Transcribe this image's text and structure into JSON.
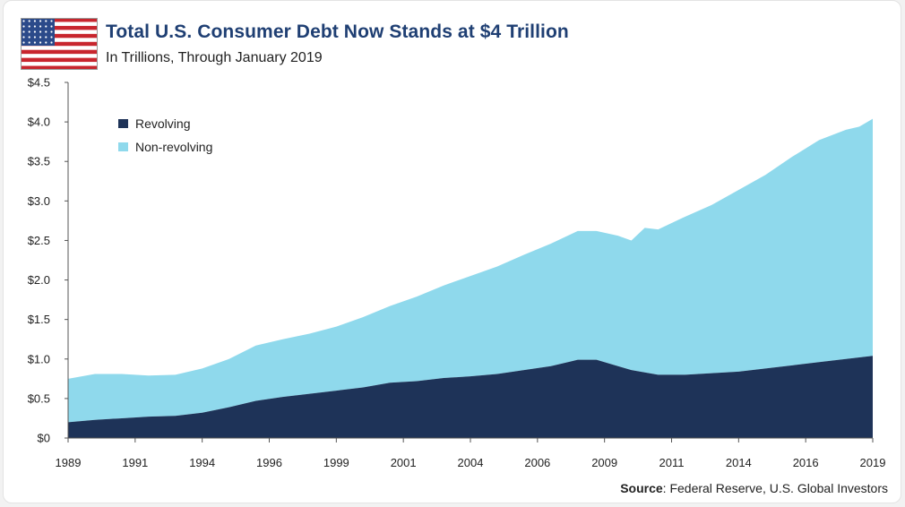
{
  "header": {
    "title": "Total U.S. Consumer Debt Now Stands at $4 Trillion",
    "subtitle": "In Trillions, Through January 2019",
    "flag_icon": "us-flag-icon"
  },
  "source": {
    "label": "Source",
    "text": ": Federal Reserve, U.S. Global Investors"
  },
  "chart_data": {
    "type": "area",
    "stacked": true,
    "title": "Total U.S. Consumer Debt Now Stands at $4 Trillion",
    "subtitle": "In Trillions, Through January 2019",
    "x_range": [
      1989.0,
      2019.0
    ],
    "ylim": [
      0,
      4.5
    ],
    "y_ticks": [
      0,
      0.5,
      1.0,
      1.5,
      2.0,
      2.5,
      3.0,
      3.5,
      4.0,
      4.5
    ],
    "y_tick_labels": [
      "$0",
      "$0.5",
      "$1.0",
      "$1.5",
      "$2.0",
      "$2.5",
      "$3.0",
      "$3.5",
      "$4.0",
      "$4.5"
    ],
    "x_tick_labels": [
      "1989",
      "1991",
      "1994",
      "1996",
      "1999",
      "2001",
      "2004",
      "2006",
      "2009",
      "2011",
      "2014",
      "2016",
      "2019"
    ],
    "legend_position": "top-left",
    "grid": false,
    "series": [
      {
        "name": "Revolving",
        "color": "#1e3358",
        "x": [
          1989.0,
          1990.0,
          1991.0,
          1992.0,
          1993.0,
          1994.0,
          1995.0,
          1996.0,
          1997.0,
          1998.0,
          1999.0,
          2000.0,
          2001.0,
          2002.0,
          2003.0,
          2004.0,
          2005.0,
          2006.0,
          2007.0,
          2008.0,
          2008.7,
          2009.5,
          2010.0,
          2010.5,
          2011.0,
          2012.0,
          2013.0,
          2014.0,
          2015.0,
          2016.0,
          2017.0,
          2018.0,
          2018.5,
          2019.0
        ],
        "values": [
          0.2,
          0.23,
          0.25,
          0.27,
          0.28,
          0.32,
          0.39,
          0.47,
          0.52,
          0.56,
          0.6,
          0.64,
          0.7,
          0.72,
          0.76,
          0.78,
          0.81,
          0.86,
          0.91,
          0.99,
          0.99,
          0.91,
          0.86,
          0.83,
          0.8,
          0.8,
          0.82,
          0.84,
          0.88,
          0.92,
          0.96,
          1.0,
          1.02,
          1.04
        ]
      },
      {
        "name": "Non-revolving",
        "color": "#8fd9ec",
        "x": [
          1989.0,
          1990.0,
          1991.0,
          1992.0,
          1993.0,
          1994.0,
          1995.0,
          1996.0,
          1997.0,
          1998.0,
          1999.0,
          2000.0,
          2001.0,
          2002.0,
          2003.0,
          2004.0,
          2005.0,
          2006.0,
          2007.0,
          2008.0,
          2008.7,
          2009.5,
          2010.0,
          2010.5,
          2011.0,
          2012.0,
          2013.0,
          2014.0,
          2015.0,
          2016.0,
          2017.0,
          2018.0,
          2018.5,
          2019.0
        ],
        "values": [
          0.55,
          0.58,
          0.56,
          0.52,
          0.52,
          0.56,
          0.61,
          0.7,
          0.73,
          0.76,
          0.81,
          0.89,
          0.97,
          1.07,
          1.17,
          1.27,
          1.36,
          1.46,
          1.55,
          1.63,
          1.63,
          1.65,
          1.64,
          1.83,
          1.84,
          2.0,
          2.13,
          2.3,
          2.45,
          2.64,
          2.81,
          2.9,
          2.92,
          3.0
        ]
      }
    ]
  }
}
